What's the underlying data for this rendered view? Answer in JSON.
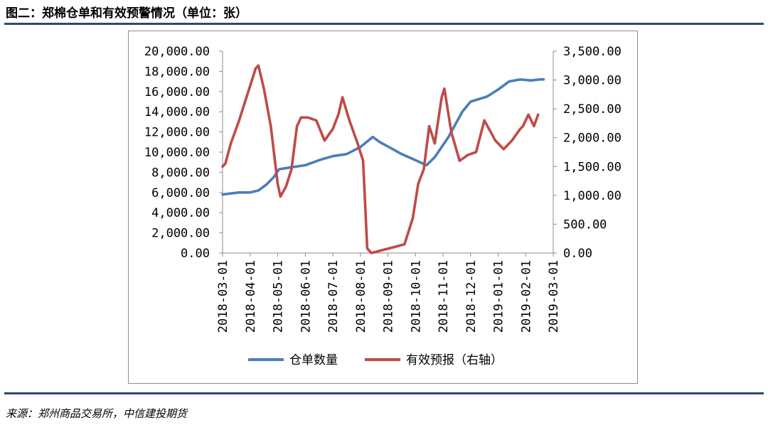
{
  "page": {
    "title": "图二：郑棉仓单和有效预警情况（单位：张）",
    "source": "来源：郑州商品交易所，中信建投期货"
  },
  "colors": {
    "series1": "#4a7ebb",
    "series2": "#be4b48",
    "rule": "#2d4a6e"
  },
  "chart_data": {
    "type": "line",
    "title": "图二：郑棉仓单和有效预警情况（单位：张）",
    "x_labels": [
      "2018-03-01",
      "2018-04-01",
      "2018-05-01",
      "2018-06-01",
      "2018-07-01",
      "2018-08-01",
      "2018-09-01",
      "2018-10-01",
      "2018-11-01",
      "2018-12-01",
      "2019-01-01",
      "2019-02-01",
      "2019-03-01"
    ],
    "y_left": {
      "min": 0,
      "max": 20000,
      "ticks": [
        "0.00",
        "2,000.00",
        "4,000.00",
        "6,000.00",
        "8,000.00",
        "10,000.00",
        "12,000.00",
        "14,000.00",
        "16,000.00",
        "18,000.00",
        "20,000.00"
      ]
    },
    "y_right": {
      "min": 0,
      "max": 3500,
      "ticks": [
        "0.00",
        "500.00",
        "1,000.00",
        "1,500.00",
        "2,000.00",
        "2,500.00",
        "3,000.00",
        "3,500.00"
      ]
    },
    "legend": [
      "仓单数量",
      "有效预报（右轴）"
    ],
    "series": [
      {
        "name": "仓单数量",
        "axis": "left",
        "points": [
          [
            0,
            5800
          ],
          [
            0.3,
            5900
          ],
          [
            0.6,
            6000
          ],
          [
            1.0,
            6000
          ],
          [
            1.3,
            6200
          ],
          [
            1.6,
            6800
          ],
          [
            1.85,
            7500
          ],
          [
            2.05,
            8300
          ],
          [
            2.5,
            8500
          ],
          [
            3.0,
            8700
          ],
          [
            3.5,
            9200
          ],
          [
            4.0,
            9600
          ],
          [
            4.5,
            9800
          ],
          [
            5.0,
            10500
          ],
          [
            5.45,
            11500
          ],
          [
            5.7,
            11000
          ],
          [
            6.1,
            10400
          ],
          [
            6.5,
            9800
          ],
          [
            7.0,
            9200
          ],
          [
            7.4,
            8700
          ],
          [
            7.7,
            9500
          ],
          [
            8.2,
            11500
          ],
          [
            8.7,
            14000
          ],
          [
            9.0,
            15000
          ],
          [
            9.6,
            15500
          ],
          [
            10.0,
            16200
          ],
          [
            10.4,
            17000
          ],
          [
            10.8,
            17200
          ],
          [
            11.2,
            17100
          ],
          [
            11.5,
            17200
          ],
          [
            11.65,
            17200
          ]
        ]
      },
      {
        "name": "有效预报（右轴）",
        "axis": "right",
        "points": [
          [
            0,
            1500
          ],
          [
            0.1,
            1550
          ],
          [
            0.3,
            1900
          ],
          [
            0.6,
            2300
          ],
          [
            0.8,
            2600
          ],
          [
            1.0,
            2900
          ],
          [
            1.2,
            3200
          ],
          [
            1.3,
            3250
          ],
          [
            1.5,
            2850
          ],
          [
            1.75,
            2200
          ],
          [
            2.0,
            1200
          ],
          [
            2.1,
            980
          ],
          [
            2.3,
            1150
          ],
          [
            2.5,
            1450
          ],
          [
            2.7,
            2200
          ],
          [
            2.85,
            2350
          ],
          [
            3.1,
            2350
          ],
          [
            3.4,
            2300
          ],
          [
            3.7,
            1950
          ],
          [
            4.0,
            2150
          ],
          [
            4.2,
            2400
          ],
          [
            4.35,
            2700
          ],
          [
            4.6,
            2300
          ],
          [
            4.9,
            1900
          ],
          [
            5.1,
            1600
          ],
          [
            5.25,
            80
          ],
          [
            5.4,
            0
          ],
          [
            5.8,
            50
          ],
          [
            6.2,
            100
          ],
          [
            6.6,
            150
          ],
          [
            6.9,
            600
          ],
          [
            7.1,
            1200
          ],
          [
            7.3,
            1450
          ],
          [
            7.5,
            2200
          ],
          [
            7.7,
            1900
          ],
          [
            7.95,
            2700
          ],
          [
            8.05,
            2850
          ],
          [
            8.3,
            2100
          ],
          [
            8.6,
            1600
          ],
          [
            8.9,
            1700
          ],
          [
            9.2,
            1750
          ],
          [
            9.5,
            2300
          ],
          [
            9.9,
            1950
          ],
          [
            10.2,
            1800
          ],
          [
            10.5,
            1950
          ],
          [
            10.8,
            2150
          ],
          [
            10.9,
            2200
          ],
          [
            11.1,
            2400
          ],
          [
            11.3,
            2200
          ],
          [
            11.45,
            2400
          ]
        ]
      }
    ]
  }
}
